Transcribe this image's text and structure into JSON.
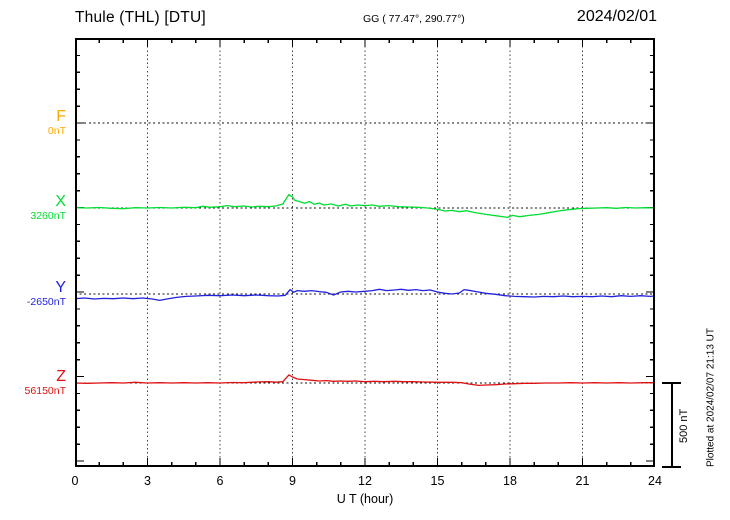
{
  "header": {
    "station_title": "Thule (THL)  [DTU]",
    "coords": "GG ( 77.47°, 290.77°)",
    "date": "2024/02/01"
  },
  "side": {
    "scale_label": "500 nT",
    "plotted_at": "Plotted at 2024/02/07 21:13 UT"
  },
  "chart_data": {
    "type": "line",
    "title": "Thule (THL) [DTU] magnetogram for 2024/02/01",
    "xlabel": "U T (hour)",
    "x_range": [
      0,
      24
    ],
    "x_ticks": [
      0,
      3,
      6,
      9,
      12,
      15,
      18,
      21,
      24
    ],
    "x_minor_step_hours": 1,
    "y_minor_tick_nT": 100,
    "scale_bar_nT": 500,
    "grid": "dotted vertical lines every 3 h; dotted horizontal reference line at each component baseline",
    "offset_unit": "nT relative to baseline_nT; points are [hour, offset]",
    "series": [
      {
        "name": "F",
        "baseline_label": "0nT",
        "baseline_nT": 0,
        "color": "#ffaa00",
        "visible_trace": false,
        "points": []
      },
      {
        "name": "X",
        "baseline_label": "3260nT",
        "baseline_nT": 3260,
        "color": "#00dd33",
        "visible_trace": true,
        "points": [
          [
            0,
            2
          ],
          [
            0.5,
            0
          ],
          [
            1,
            3
          ],
          [
            1.5,
            -2
          ],
          [
            2,
            -4
          ],
          [
            2.5,
            2
          ],
          [
            3,
            0
          ],
          [
            3.5,
            3
          ],
          [
            4,
            0
          ],
          [
            4.5,
            4
          ],
          [
            5,
            2
          ],
          [
            5.3,
            10
          ],
          [
            5.6,
            4
          ],
          [
            6,
            8
          ],
          [
            6.3,
            14
          ],
          [
            6.6,
            8
          ],
          [
            7,
            12
          ],
          [
            7.3,
            6
          ],
          [
            7.6,
            10
          ],
          [
            8,
            8
          ],
          [
            8.3,
            12
          ],
          [
            8.6,
            24
          ],
          [
            8.85,
            80
          ],
          [
            9,
            65
          ],
          [
            9.1,
            45
          ],
          [
            9.3,
            38
          ],
          [
            9.5,
            28
          ],
          [
            9.7,
            38
          ],
          [
            9.9,
            22
          ],
          [
            10.1,
            30
          ],
          [
            10.3,
            18
          ],
          [
            10.6,
            24
          ],
          [
            10.9,
            12
          ],
          [
            11.2,
            22
          ],
          [
            11.4,
            12
          ],
          [
            11.7,
            18
          ],
          [
            12,
            14
          ],
          [
            12.3,
            18
          ],
          [
            12.6,
            10
          ],
          [
            13,
            14
          ],
          [
            13.4,
            8
          ],
          [
            13.8,
            6
          ],
          [
            14.2,
            4
          ],
          [
            14.6,
            0
          ],
          [
            15,
            -8
          ],
          [
            15.3,
            -18
          ],
          [
            15.6,
            -14
          ],
          [
            15.9,
            -22
          ],
          [
            16.2,
            -16
          ],
          [
            16.5,
            -26
          ],
          [
            17,
            -38
          ],
          [
            17.4,
            -46
          ],
          [
            17.9,
            -56
          ],
          [
            18.1,
            -44
          ],
          [
            18.4,
            -52
          ],
          [
            18.8,
            -44
          ],
          [
            19.2,
            -38
          ],
          [
            19.6,
            -28
          ],
          [
            20,
            -18
          ],
          [
            20.4,
            -10
          ],
          [
            20.8,
            -4
          ],
          [
            21.2,
            -2
          ],
          [
            21.6,
            0
          ],
          [
            22,
            2
          ],
          [
            22.4,
            -2
          ],
          [
            22.8,
            3
          ],
          [
            23.2,
            0
          ],
          [
            23.6,
            2
          ],
          [
            24,
            0
          ]
        ]
      },
      {
        "name": "Y",
        "baseline_label": "-2650nT",
        "baseline_nT": -2650,
        "color": "#2222dd",
        "visible_trace": true,
        "points": [
          [
            0,
            -28
          ],
          [
            0.4,
            -24
          ],
          [
            0.8,
            -30
          ],
          [
            1.2,
            -26
          ],
          [
            1.6,
            -28
          ],
          [
            2,
            -24
          ],
          [
            2.4,
            -28
          ],
          [
            2.8,
            -24
          ],
          [
            3.2,
            -30
          ],
          [
            3.5,
            -38
          ],
          [
            3.8,
            -30
          ],
          [
            4.2,
            -20
          ],
          [
            4.6,
            -14
          ],
          [
            5,
            -12
          ],
          [
            5.5,
            -8
          ],
          [
            6,
            -10
          ],
          [
            6.5,
            -6
          ],
          [
            7,
            -10
          ],
          [
            7.5,
            -6
          ],
          [
            8,
            -10
          ],
          [
            8.4,
            -12
          ],
          [
            8.7,
            -8
          ],
          [
            8.9,
            26
          ],
          [
            9.05,
            10
          ],
          [
            9.2,
            20
          ],
          [
            9.5,
            16
          ],
          [
            9.8,
            20
          ],
          [
            10.1,
            14
          ],
          [
            10.4,
            10
          ],
          [
            10.7,
            -6
          ],
          [
            11,
            12
          ],
          [
            11.3,
            16
          ],
          [
            11.6,
            12
          ],
          [
            12,
            16
          ],
          [
            12.3,
            20
          ],
          [
            12.6,
            28
          ],
          [
            12.9,
            20
          ],
          [
            13.2,
            24
          ],
          [
            13.5,
            28
          ],
          [
            13.8,
            22
          ],
          [
            14.1,
            26
          ],
          [
            14.4,
            20
          ],
          [
            14.7,
            24
          ],
          [
            15,
            12
          ],
          [
            15.3,
            4
          ],
          [
            15.6,
            0
          ],
          [
            15.9,
            6
          ],
          [
            16.1,
            26
          ],
          [
            16.3,
            22
          ],
          [
            16.6,
            14
          ],
          [
            17,
            4
          ],
          [
            17.4,
            -2
          ],
          [
            17.8,
            -10
          ],
          [
            18.2,
            -14
          ],
          [
            18.6,
            -16
          ],
          [
            19,
            -18
          ],
          [
            19.4,
            -14
          ],
          [
            19.8,
            -16
          ],
          [
            20.2,
            -12
          ],
          [
            20.6,
            -16
          ],
          [
            21,
            -14
          ],
          [
            21.4,
            -16
          ],
          [
            21.8,
            -12
          ],
          [
            22.2,
            -16
          ],
          [
            22.6,
            -10
          ],
          [
            23,
            -14
          ],
          [
            23.4,
            -10
          ],
          [
            23.8,
            -14
          ],
          [
            24,
            -12
          ]
        ]
      },
      {
        "name": "Z",
        "baseline_label": "56150nT",
        "baseline_nT": 56150,
        "color": "#dd1111",
        "visible_trace": true,
        "points": [
          [
            0,
            0
          ],
          [
            0.5,
            -2
          ],
          [
            1,
            0
          ],
          [
            1.5,
            2
          ],
          [
            2,
            0
          ],
          [
            2.5,
            4
          ],
          [
            3,
            0
          ],
          [
            3.5,
            2
          ],
          [
            4,
            0
          ],
          [
            4.5,
            2
          ],
          [
            5,
            0
          ],
          [
            5.5,
            2
          ],
          [
            6,
            0
          ],
          [
            6.5,
            3
          ],
          [
            7,
            2
          ],
          [
            7.5,
            6
          ],
          [
            8,
            8
          ],
          [
            8.3,
            5
          ],
          [
            8.6,
            8
          ],
          [
            8.85,
            48
          ],
          [
            9,
            36
          ],
          [
            9.2,
            24
          ],
          [
            9.5,
            20
          ],
          [
            9.8,
            16
          ],
          [
            10.1,
            12
          ],
          [
            10.4,
            14
          ],
          [
            10.7,
            10
          ],
          [
            11,
            12
          ],
          [
            11.3,
            10
          ],
          [
            11.6,
            12
          ],
          [
            12,
            8
          ],
          [
            12.4,
            10
          ],
          [
            12.8,
            8
          ],
          [
            13.2,
            10
          ],
          [
            13.6,
            8
          ],
          [
            14,
            8
          ],
          [
            14.4,
            6
          ],
          [
            14.8,
            5
          ],
          [
            15.2,
            4
          ],
          [
            15.6,
            4
          ],
          [
            16,
            2
          ],
          [
            16.3,
            -6
          ],
          [
            16.7,
            -14
          ],
          [
            17,
            -12
          ],
          [
            17.4,
            -10
          ],
          [
            17.8,
            -6
          ],
          [
            18.2,
            -4
          ],
          [
            18.6,
            -2
          ],
          [
            19,
            -2
          ],
          [
            19.5,
            0
          ],
          [
            20,
            0
          ],
          [
            20.5,
            2
          ],
          [
            21,
            0
          ],
          [
            21.5,
            2
          ],
          [
            22,
            0
          ],
          [
            22.5,
            2
          ],
          [
            23,
            0
          ],
          [
            23.5,
            2
          ],
          [
            24,
            2
          ]
        ]
      }
    ]
  }
}
